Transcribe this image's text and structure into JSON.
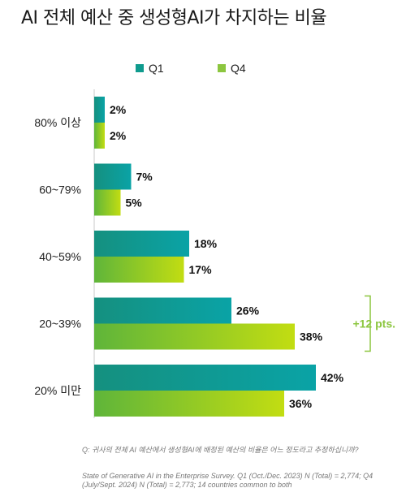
{
  "title": "AI 전체 예산 중 생성형AI가 차지하는 비율",
  "legend": [
    {
      "name": "Q1",
      "color": "#0f9b8e"
    },
    {
      "name": "Q4",
      "color": "#8cc63f"
    }
  ],
  "chart_data": {
    "type": "bar",
    "orientation": "horizontal",
    "categories": [
      "80% 이상",
      "60~79%",
      "40~59%",
      "20~39%",
      "20% 미만"
    ],
    "series": [
      {
        "name": "Q1",
        "values": [
          2,
          7,
          18,
          26,
          42
        ],
        "labels": [
          "2%",
          "7%",
          "18%",
          "26%",
          "42%"
        ],
        "color": "#0f9b8e"
      },
      {
        "name": "Q4",
        "values": [
          2,
          5,
          17,
          38,
          36
        ],
        "labels": [
          "2%",
          "5%",
          "17%",
          "38%",
          "36%"
        ],
        "color": "#8cc63f"
      }
    ],
    "xlim": [
      0,
      42
    ],
    "grid": false,
    "legend_position": "top-center",
    "annotation": {
      "category": "20~39%",
      "text": "+12 pts.",
      "color": "#8cc63f"
    }
  },
  "footnote": {
    "question": "Q: 귀사의 전체 AI 예산에서 생성형AI에 배정된 예산의 비율은 어느 정도라고 추정하십니까?",
    "source": "State of Generative AI in the Enterprise Survey. Q1 (Oct./Dec. 2023) N (Total) = 2,774; Q4 (July/Sept. 2024) N (Total) = 2,773; 14 countries common to both"
  }
}
